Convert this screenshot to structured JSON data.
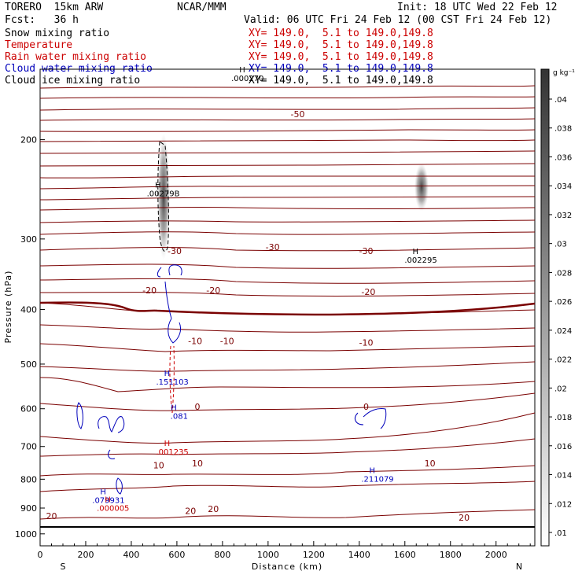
{
  "header": {
    "model": "TORERO  15km ARW",
    "center": "NCAR/MMM",
    "init": "Init: 18 UTC Wed 22 Feb 12",
    "fcst": "Fcst:   36 h",
    "valid": "Valid: 06 UTC Fri 24 Feb 12 (00 CST Fri 24 Feb 12)"
  },
  "legend": [
    {
      "name": "Snow mixing ratio",
      "xy": "XY= 149.0,  5.1 to 149.0,149.8",
      "color": "#000000"
    },
    {
      "name": "Temperature",
      "xy": "XY= 149.0,  5.1 to 149.0,149.8",
      "color": "#cc0000"
    },
    {
      "name": "Rain water mixing ratio",
      "xy": "XY= 149.0,  5.1 to 149.0,149.8",
      "color": "#cc0000"
    },
    {
      "name": "Cloud water mixing ratio",
      "xy": "XY= 149.0,  5.1 to 149.0,149.8",
      "color": "#0000bb"
    },
    {
      "name": "Cloud ice mixing ratio",
      "xy": "XY= 149.0,  5.1 to 149.0,149.8",
      "color": "#000000"
    }
  ],
  "chart_data": {
    "type": "cross-section",
    "xlabel": "Distance (km)",
    "ylabel": "Pressure (hPa)",
    "xlim": [
      0,
      2170
    ],
    "ylim_log": [
      150,
      1050
    ],
    "x_ticks": [
      "0",
      "200",
      "400",
      "600",
      "800",
      "1000",
      "1200",
      "1400",
      "1600",
      "1800",
      "2000"
    ],
    "y_ticks": [
      "200",
      "300",
      "400",
      "500",
      "600",
      "700",
      "800",
      "900",
      "1000"
    ],
    "y_tick_values": [
      200,
      300,
      400,
      500,
      600,
      700,
      800,
      900,
      1000
    ],
    "x_tick_values": [
      0,
      200,
      400,
      600,
      800,
      1000,
      1200,
      1400,
      1600,
      1800,
      2000
    ],
    "end_left": "S",
    "end_right": "N",
    "colorbar": {
      "unit": "g kg⁻¹",
      "labels": [
        ".04",
        ".038",
        ".036",
        ".034",
        ".032",
        ".03",
        ".028",
        ".026",
        ".024",
        ".022",
        ".02",
        ".018",
        ".016",
        ".014",
        ".012",
        ".01"
      ],
      "values": [
        0.04,
        0.038,
        0.036,
        0.034,
        0.032,
        0.03,
        0.028,
        0.026,
        0.024,
        0.022,
        0.02,
        0.018,
        0.016,
        0.014,
        0.012,
        0.01
      ]
    },
    "temperature_contour_labels": [
      {
        "text": "-50",
        "x": 1130,
        "p": 180
      },
      {
        "text": "-30",
        "x": 590,
        "p": 315
      },
      {
        "text": "-30",
        "x": 1020,
        "p": 310
      },
      {
        "text": "-30",
        "x": 1430,
        "p": 315
      },
      {
        "text": "-20",
        "x": 480,
        "p": 370
      },
      {
        "text": "-20",
        "x": 760,
        "p": 370
      },
      {
        "text": "-20",
        "x": 1440,
        "p": 372
      },
      {
        "text": "-10",
        "x": 680,
        "p": 455
      },
      {
        "text": "-10",
        "x": 820,
        "p": 455
      },
      {
        "text": "-10",
        "x": 1430,
        "p": 458
      },
      {
        "text": "0",
        "x": 690,
        "p": 595
      },
      {
        "text": "0",
        "x": 1430,
        "p": 595
      },
      {
        "text": "10",
        "x": 520,
        "p": 755
      },
      {
        "text": "10",
        "x": 690,
        "p": 750
      },
      {
        "text": "10",
        "x": 1710,
        "p": 750
      },
      {
        "text": "20",
        "x": 50,
        "p": 930
      },
      {
        "text": "20",
        "x": 660,
        "p": 910
      },
      {
        "text": "20",
        "x": 760,
        "p": 903
      },
      {
        "text": "20",
        "x": 1860,
        "p": 935
      }
    ],
    "maxima": [
      {
        "text": ".00279B",
        "x": 540,
        "p": 248,
        "color": "#000000"
      },
      {
        "text": ".002295",
        "x": 1670,
        "p": 325,
        "color": "#000000"
      },
      {
        "text": ".000270",
        "x": 910,
        "p": 155,
        "color": "#000000"
      },
      {
        "text": ".151103",
        "x": 580,
        "p": 535,
        "color": "#0000bb"
      },
      {
        "text": ".081",
        "x": 610,
        "p": 615,
        "color": "#0000bb"
      },
      {
        "text": ".001235",
        "x": 580,
        "p": 712,
        "color": "#cc0000"
      },
      {
        "text": ".211079",
        "x": 1480,
        "p": 795,
        "color": "#0000bb"
      },
      {
        "text": ".079931",
        "x": 300,
        "p": 868,
        "color": "#0000bb"
      },
      {
        "text": ".000005",
        "x": 320,
        "p": 895,
        "color": "#cc0000"
      }
    ]
  }
}
